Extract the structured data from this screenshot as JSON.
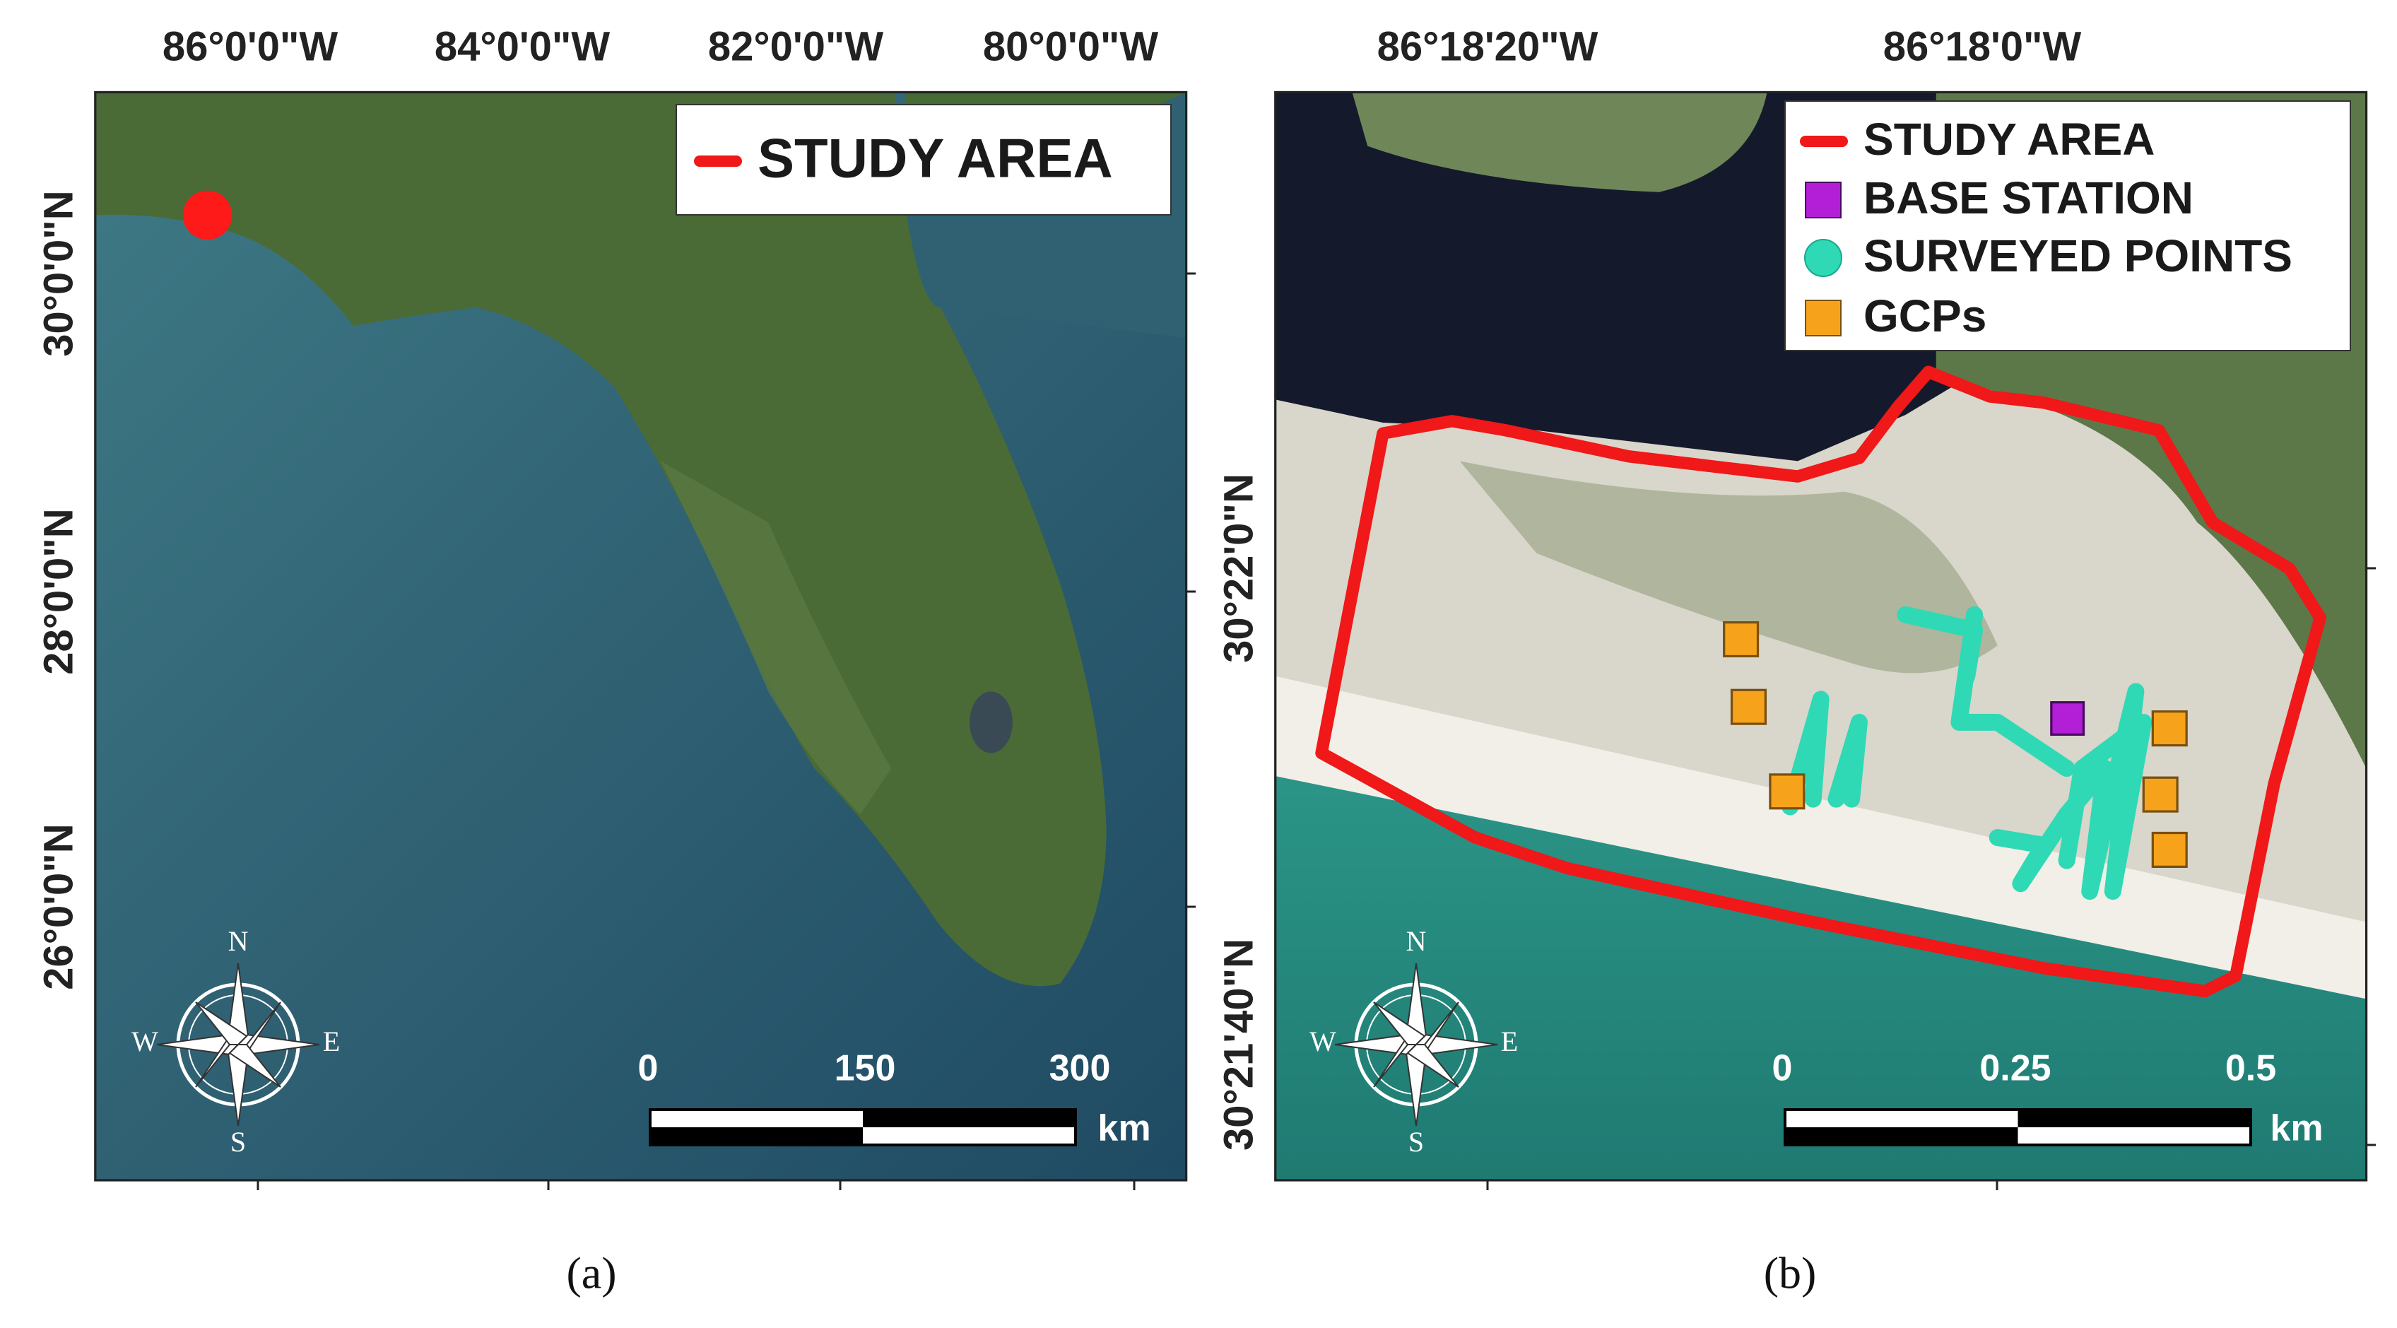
{
  "panels": [
    {
      "caption": "(a)",
      "x_labels": [
        "86°0'0\"W",
        "84°0'0\"W",
        "82°0'0\"W",
        "80°0'0\"W"
      ],
      "y_labels": [
        "30°0'0\"N",
        "28°0'0\"N",
        "26°0'0\"N"
      ],
      "legend": [
        "STUDY AREA"
      ],
      "scale_labels": [
        "0",
        "150",
        "300"
      ],
      "scale_unit": "km",
      "compass": [
        "N",
        "E",
        "S",
        "W"
      ]
    },
    {
      "caption": "(b)",
      "x_labels": [
        "86°18'20\"W",
        "86°18'0\"W"
      ],
      "y_labels": [
        "30°22'0\"N",
        "30°21'40\"N"
      ],
      "legend": [
        "STUDY AREA",
        "BASE STATION",
        "SURVEYED POINTS",
        "GCPs"
      ],
      "scale_labels": [
        "0",
        "0.25",
        "0.5"
      ],
      "scale_unit": "km",
      "compass": [
        "N",
        "E",
        "S",
        "W"
      ]
    }
  ]
}
